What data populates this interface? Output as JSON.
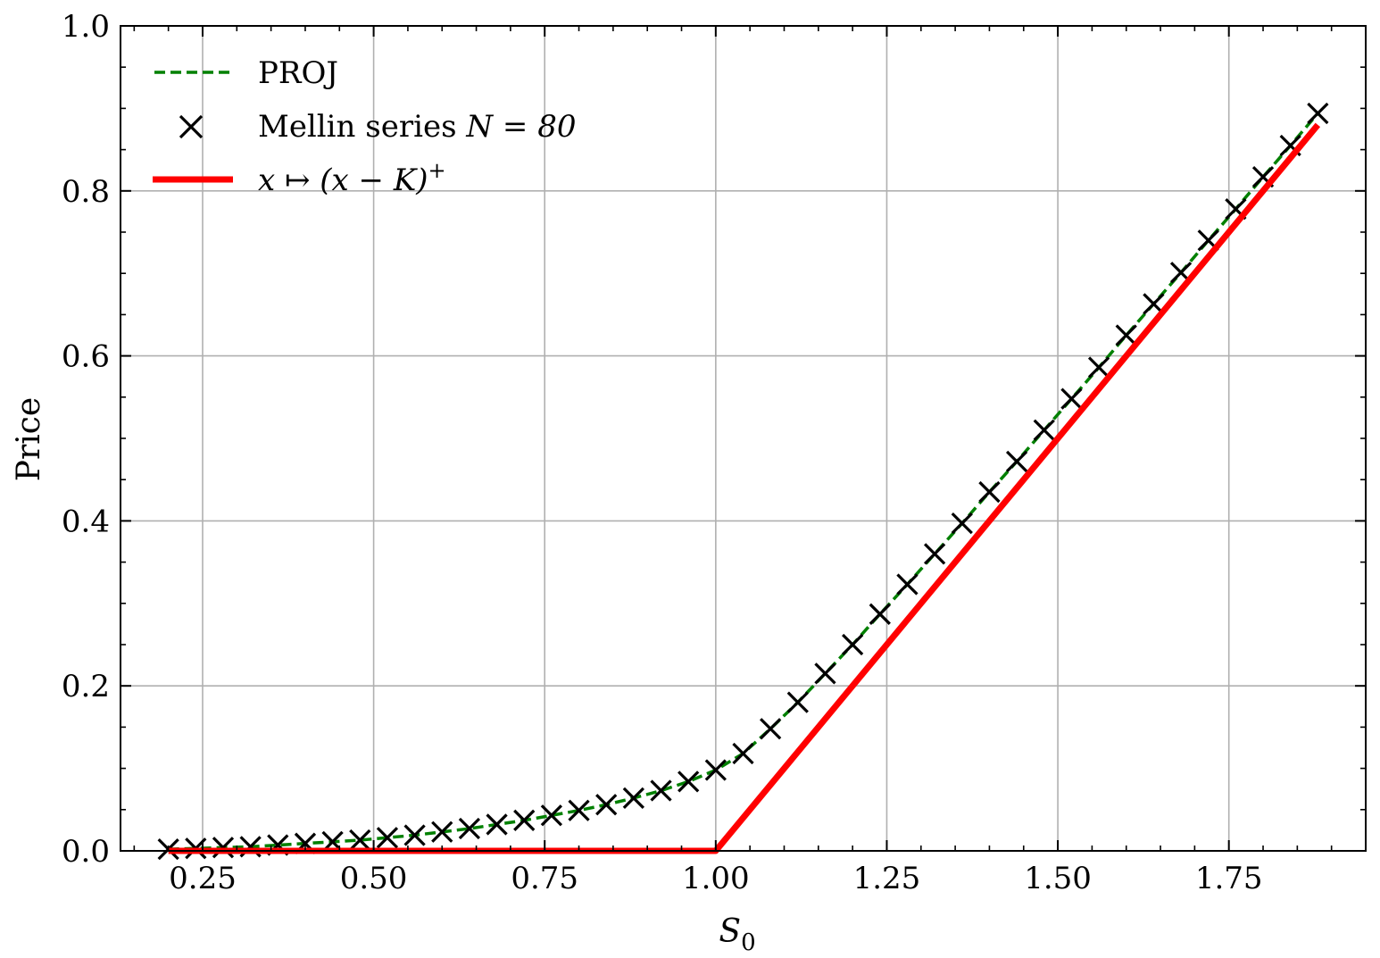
{
  "chart_data": {
    "type": "line",
    "xlabel": "S_0",
    "xlabel_main": "S",
    "xlabel_sub": "0",
    "ylabel": "Price",
    "xlim": [
      0.13,
      1.95
    ],
    "ylim": [
      0.0,
      1.0
    ],
    "xticks": [
      0.25,
      0.5,
      0.75,
      1.0,
      1.25,
      1.5,
      1.75
    ],
    "xtick_labels": [
      "0.25",
      "0.50",
      "0.75",
      "1.00",
      "1.25",
      "1.50",
      "1.75"
    ],
    "yticks": [
      0.0,
      0.2,
      0.4,
      0.6,
      0.8,
      1.0
    ],
    "ytick_labels": [
      "0.0",
      "0.2",
      "0.4",
      "0.6",
      "0.8",
      "1.0"
    ],
    "grid": true,
    "legend_position": "upper-left",
    "legend": [
      {
        "label": "PROJ",
        "style": "dashed-line",
        "color": "#008000"
      },
      {
        "label_text": "Mellin series ",
        "label_math": "N = 80",
        "style": "x-marker",
        "color": "#000000"
      },
      {
        "label_math": "x ↦ (x − K)",
        "label_sup": "+",
        "style": "solid-line",
        "color": "#ff0000"
      }
    ],
    "series": [
      {
        "name": "PROJ",
        "style": "dashed",
        "color": "#008000",
        "x": [
          0.2,
          0.24,
          0.28,
          0.32,
          0.36,
          0.4,
          0.44,
          0.48,
          0.52,
          0.56,
          0.6,
          0.64,
          0.68,
          0.72,
          0.76,
          0.8,
          0.84,
          0.88,
          0.92,
          0.96,
          1.0,
          1.04,
          1.08,
          1.12,
          1.16,
          1.2,
          1.24,
          1.28,
          1.32,
          1.36,
          1.4,
          1.44,
          1.48,
          1.52,
          1.56,
          1.6,
          1.64,
          1.68,
          1.72,
          1.76,
          1.8,
          1.84,
          1.88
        ],
        "y": [
          0.002,
          0.003,
          0.004,
          0.005,
          0.007,
          0.009,
          0.011,
          0.013,
          0.016,
          0.019,
          0.023,
          0.027,
          0.032,
          0.037,
          0.043,
          0.049,
          0.056,
          0.064,
          0.073,
          0.084,
          0.098,
          0.118,
          0.148,
          0.18,
          0.215,
          0.25,
          0.287,
          0.323,
          0.36,
          0.397,
          0.435,
          0.472,
          0.51,
          0.548,
          0.586,
          0.625,
          0.663,
          0.701,
          0.74,
          0.778,
          0.817,
          0.855,
          0.894
        ]
      },
      {
        "name": "Mellin series N = 80",
        "style": "x-markers",
        "color": "#000000",
        "x": [
          0.2,
          0.24,
          0.28,
          0.32,
          0.36,
          0.4,
          0.44,
          0.48,
          0.52,
          0.56,
          0.6,
          0.64,
          0.68,
          0.72,
          0.76,
          0.8,
          0.84,
          0.88,
          0.92,
          0.96,
          1.0,
          1.04,
          1.08,
          1.12,
          1.16,
          1.2,
          1.24,
          1.28,
          1.32,
          1.36,
          1.4,
          1.44,
          1.48,
          1.52,
          1.56,
          1.6,
          1.64,
          1.68,
          1.72,
          1.76,
          1.8,
          1.84,
          1.88
        ],
        "y": [
          0.002,
          0.003,
          0.004,
          0.005,
          0.007,
          0.009,
          0.011,
          0.013,
          0.016,
          0.019,
          0.023,
          0.027,
          0.032,
          0.037,
          0.043,
          0.049,
          0.056,
          0.064,
          0.073,
          0.084,
          0.098,
          0.118,
          0.148,
          0.18,
          0.215,
          0.25,
          0.287,
          0.323,
          0.36,
          0.397,
          0.435,
          0.472,
          0.51,
          0.548,
          0.586,
          0.625,
          0.663,
          0.701,
          0.74,
          0.778,
          0.817,
          0.855,
          0.894
        ]
      },
      {
        "name": "x ↦ (x − K)+",
        "style": "solid",
        "color": "#ff0000",
        "x": [
          0.2,
          1.0,
          1.88
        ],
        "y": [
          0.0,
          0.0,
          0.88
        ]
      }
    ]
  }
}
